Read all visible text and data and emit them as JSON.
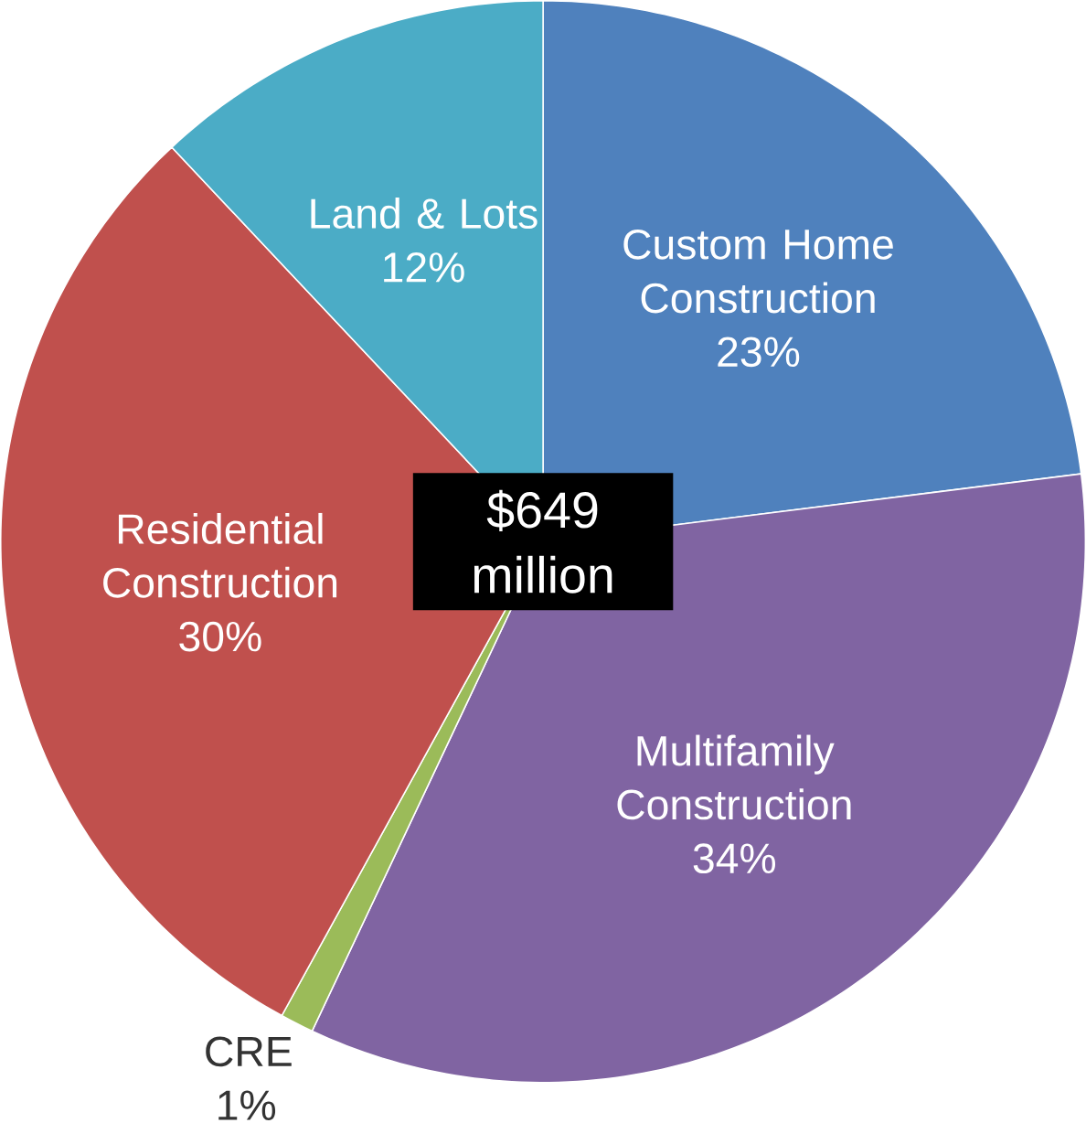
{
  "chart_data": {
    "type": "pie",
    "categories": [
      "Custom Home Construction",
      "Multifamily Construction",
      "CRE",
      "Residential Construction",
      "Land & Lots"
    ],
    "values": [
      23,
      34,
      1,
      30,
      12
    ],
    "value_labels": [
      "23%",
      "34%",
      "1%",
      "30%",
      "12%"
    ],
    "colors": [
      "#4f81bd",
      "#8064a2",
      "#9bbb59",
      "#c0504d",
      "#4bacc6"
    ],
    "annotations": [
      "$649 million"
    ]
  }
}
